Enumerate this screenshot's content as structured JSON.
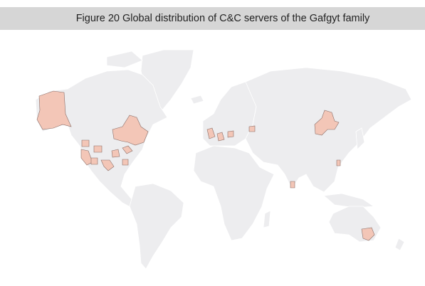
{
  "header": {
    "title": "Figure 20 Global distribution of C&C servers of the Gafgyt family"
  }
}
